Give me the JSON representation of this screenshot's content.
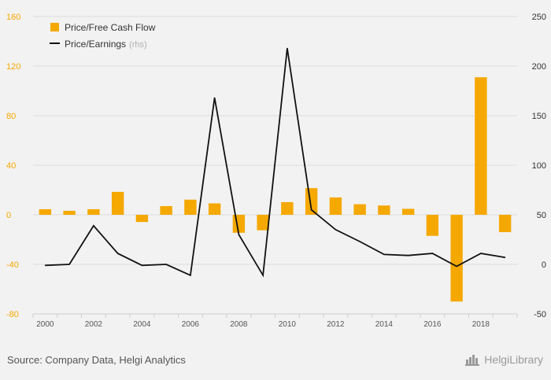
{
  "chart_data": {
    "type": "bar",
    "x": [
      "2000",
      "2001",
      "2002",
      "2003",
      "2004",
      "2005",
      "2006",
      "2007",
      "2008",
      "2009",
      "2010",
      "2011",
      "2012",
      "2013",
      "2014",
      "2015",
      "2016",
      "2017",
      "2018",
      "2019"
    ],
    "x_tick_labels": [
      "2000",
      "2002",
      "2004",
      "2006",
      "2008",
      "2010",
      "2012",
      "2014",
      "2016",
      "2018"
    ],
    "series": [
      {
        "name": "Price/Free Cash Flow",
        "type": "bar",
        "axis": "left",
        "color": "#f5a800",
        "values": [
          4.5,
          3.2,
          4.5,
          18.5,
          -5.8,
          7,
          12.2,
          9.2,
          -14.5,
          -12.5,
          10.2,
          21.5,
          14,
          8.5,
          7.5,
          4.8,
          -17,
          -70,
          111,
          -14
        ]
      },
      {
        "name": "Price/Earnings",
        "name_note": "(rhs)",
        "type": "line",
        "axis": "right",
        "color": "#111111",
        "values": [
          -1,
          0,
          39,
          11,
          -1,
          0,
          -11,
          168,
          30,
          -11,
          218,
          55,
          35,
          23,
          10,
          9,
          11,
          -2,
          11,
          7
        ]
      }
    ],
    "y_left": {
      "ticks": [
        -80,
        -40,
        0,
        40,
        80,
        120,
        160
      ],
      "range": [
        -80,
        160
      ]
    },
    "y_right": {
      "ticks": [
        -50,
        0,
        50,
        100,
        150,
        200,
        250
      ],
      "range": [
        -50,
        250
      ]
    },
    "grid": true,
    "legend_position": "top-left"
  },
  "footer": {
    "source": "Source: Company Data, Helgi Analytics",
    "brand": "HelgiLibrary",
    "brand_icon": "helgi-library-logo-icon"
  }
}
